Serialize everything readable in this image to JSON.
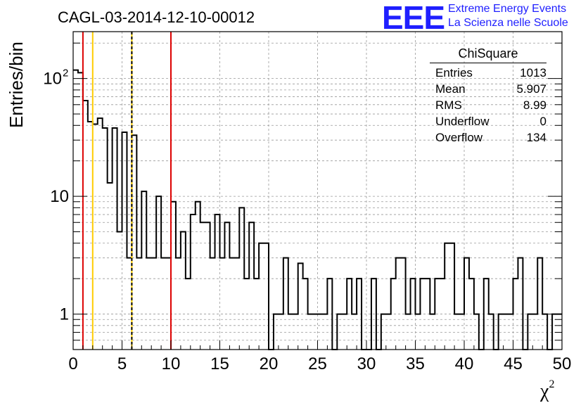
{
  "header": {
    "title": "CAGL-03-2014-12-10-00012",
    "logo_text": "EEE",
    "logo_line1": "Extreme Energy Events",
    "logo_line2": "La Scienza nelle Scuole"
  },
  "stats_box": {
    "name": "ChiSquare",
    "rows": [
      {
        "label": "Entries",
        "value": "1013"
      },
      {
        "label": "Mean",
        "value": "5.907"
      },
      {
        "label": "RMS",
        "value": "8.99"
      },
      {
        "label": "Underflow",
        "value": "0"
      },
      {
        "label": "Overflow",
        "value": "134"
      }
    ]
  },
  "colors": {
    "red_line": "#dd0000",
    "yellow_line": "#ffcc00",
    "histogram": "#000000",
    "grid": "#999999",
    "logo": "#1f1fff"
  },
  "chart_data": {
    "type": "histogram",
    "title": "CAGL-03-2014-12-10-00012",
    "xlabel": "χ",
    "xlabel_sup": "2",
    "ylabel": "Entries/bin",
    "xlim": [
      0,
      50
    ],
    "ylim": [
      0.5,
      250
    ],
    "yscale": "log",
    "grid": true,
    "bin_width": 0.5,
    "x_ticks": [
      0,
      5,
      10,
      15,
      20,
      25,
      30,
      35,
      40,
      45,
      50
    ],
    "y_ticks": [
      {
        "value": 1,
        "label": "1"
      },
      {
        "value": 10,
        "label": "10"
      },
      {
        "value": 100,
        "label": "10",
        "sup": "2"
      }
    ],
    "values": [
      118,
      112,
      65,
      43,
      41,
      46,
      38,
      13,
      38,
      5,
      35,
      3,
      33,
      3,
      11,
      3,
      3,
      10,
      3,
      3,
      9,
      3,
      5,
      2,
      7,
      9,
      6,
      6,
      3,
      7,
      3,
      6,
      3,
      3,
      8,
      2,
      6,
      2,
      4,
      4,
      0.5,
      1,
      1,
      3,
      1,
      1,
      2.7,
      2,
      1,
      1,
      1,
      1,
      2,
      0,
      1,
      1,
      2,
      1,
      2,
      0.5,
      0.5,
      2,
      0.5,
      1,
      1,
      2,
      3,
      3,
      1,
      2,
      1,
      2,
      2,
      1,
      2,
      2,
      4,
      4,
      1,
      1,
      3,
      2,
      1,
      0.5,
      2,
      1,
      0.5,
      1,
      1,
      1,
      2,
      3,
      0.5,
      1,
      1,
      3,
      1,
      0.5,
      1,
      1
    ],
    "vertical_lines": [
      {
        "x": 1,
        "color": "red",
        "style": "solid"
      },
      {
        "x": 2,
        "color": "yellow",
        "style": "solid"
      },
      {
        "x": 6,
        "color": "yellow",
        "style": "solid"
      },
      {
        "x": 6,
        "color": "black",
        "style": "dashed"
      },
      {
        "x": 10,
        "color": "red",
        "style": "solid"
      }
    ]
  }
}
